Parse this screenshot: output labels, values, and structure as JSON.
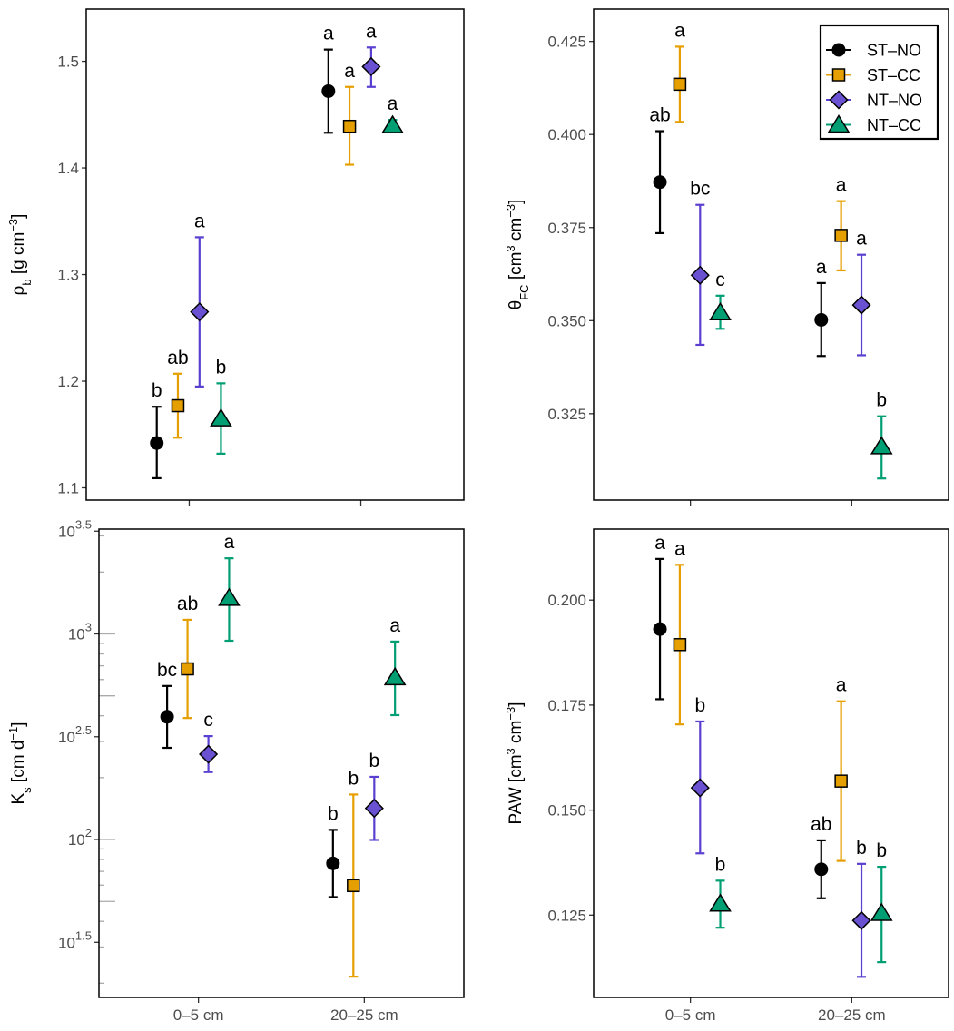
{
  "chart_data": [
    {
      "type": "scatter-errorbar",
      "ylabel": [
        {
          "t": "ρ"
        },
        {
          "t": "b",
          "sub": true
        },
        {
          "t": " [g cm"
        },
        {
          "t": "−3",
          "sup": true
        },
        {
          "t": "]"
        }
      ],
      "yscale": "linear",
      "ylim": [
        1.0885,
        1.549
      ],
      "yticks": [
        {
          "value": 1.1,
          "label": "1.1"
        },
        {
          "value": 1.2,
          "label": "1.2"
        },
        {
          "value": 1.3,
          "label": "1.3"
        },
        {
          "value": 1.4,
          "label": "1.4"
        },
        {
          "value": 1.5,
          "label": "1.5"
        }
      ],
      "categories": [
        "0–5 cm",
        "20–25 cm"
      ],
      "show_x_labels": false,
      "series": [
        {
          "name": "ST–NO",
          "color": "#000000",
          "marker": "circle",
          "mean": [
            1.142,
            1.472
          ],
          "lower": [
            1.109,
            1.433
          ],
          "upper": [
            1.176,
            1.511
          ],
          "letters": [
            "b",
            "a"
          ]
        },
        {
          "name": "ST–CC",
          "color": "#E69F00",
          "marker": "square",
          "mean": [
            1.177,
            1.439
          ],
          "lower": [
            1.147,
            1.403
          ],
          "upper": [
            1.207,
            1.476
          ],
          "letters": [
            "ab",
            "a"
          ]
        },
        {
          "name": "NT–NO",
          "color": "#6A51D1",
          "marker": "diamond",
          "mean": [
            1.265,
            1.495
          ],
          "lower": [
            1.195,
            1.476
          ],
          "upper": [
            1.335,
            1.513
          ],
          "letters": [
            "a",
            "a"
          ]
        },
        {
          "name": "NT–CC",
          "color": "#009E73",
          "marker": "triangle",
          "mean": [
            1.165,
            1.44
          ],
          "lower": [
            1.132,
            1.434
          ],
          "upper": [
            1.198,
            1.445
          ],
          "letters": [
            "b",
            "a"
          ]
        }
      ]
    },
    {
      "type": "scatter-errorbar",
      "ylabel": [
        {
          "t": "θ"
        },
        {
          "t": "FC",
          "sub": true
        },
        {
          "t": "  [cm"
        },
        {
          "t": "3",
          "sup": true
        },
        {
          "t": " cm"
        },
        {
          "t": "−3",
          "sup": true
        },
        {
          "t": "]"
        }
      ],
      "yscale": "linear",
      "ylim": [
        0.3018,
        0.4337
      ],
      "yticks": [
        {
          "value": 0.325,
          "label": "0.325"
        },
        {
          "value": 0.35,
          "label": "0.350"
        },
        {
          "value": 0.375,
          "label": "0.375"
        },
        {
          "value": 0.4,
          "label": "0.400"
        },
        {
          "value": 0.425,
          "label": "0.425"
        }
      ],
      "categories": [
        "0–5 cm",
        "20–25 cm"
      ],
      "show_x_labels": false,
      "legend": [
        "ST–NO",
        "ST–CC",
        "NT–NO",
        "NT–CC"
      ],
      "legend_position": "top-right",
      "series": [
        {
          "name": "ST–NO",
          "color": "#000000",
          "marker": "circle",
          "mean": [
            0.3872,
            0.3502
          ],
          "lower": [
            0.3735,
            0.3405
          ],
          "upper": [
            0.4009,
            0.3601
          ],
          "letters": [
            "ab",
            "a"
          ]
        },
        {
          "name": "ST–CC",
          "color": "#E69F00",
          "marker": "square",
          "mean": [
            0.4135,
            0.3729
          ],
          "lower": [
            0.4034,
            0.3635
          ],
          "upper": [
            0.4236,
            0.3821
          ],
          "letters": [
            "a",
            "a"
          ]
        },
        {
          "name": "NT–NO",
          "color": "#6A51D1",
          "marker": "diamond",
          "mean": [
            0.3622,
            0.3542
          ],
          "lower": [
            0.3435,
            0.3407
          ],
          "upper": [
            0.3811,
            0.3677
          ],
          "letters": [
            "bc",
            "a"
          ]
        },
        {
          "name": "NT–CC",
          "color": "#009E73",
          "marker": "triangle",
          "mean": [
            0.3522,
            0.3162
          ],
          "lower": [
            0.3478,
            0.3076
          ],
          "upper": [
            0.3567,
            0.3243
          ],
          "letters": [
            "c",
            "b"
          ]
        }
      ]
    },
    {
      "type": "scatter-errorbar",
      "ylabel": [
        {
          "t": "K"
        },
        {
          "t": "s",
          "sub": true
        },
        {
          "t": "  [cm d"
        },
        {
          "t": "−1",
          "sup": true
        },
        {
          "t": "]"
        }
      ],
      "yscale": "log10",
      "ylim": [
        1.232,
        3.51
      ],
      "yticks": [
        {
          "value": 1.5,
          "base": "10",
          "exp": "1.5"
        },
        {
          "value": 2,
          "base": "10",
          "exp": "2"
        },
        {
          "value": 2.5,
          "base": "10",
          "exp": "2.5"
        },
        {
          "value": 3,
          "base": "10",
          "exp": "3"
        },
        {
          "value": 3.5,
          "base": "10",
          "exp": "3.5"
        }
      ],
      "categories": [
        "0–5 cm",
        "20–25 cm"
      ],
      "show_x_labels": true,
      "series": [
        {
          "name": "ST–NO",
          "color": "#000000",
          "marker": "circle",
          "mean": [
            2.597,
            1.884
          ],
          "lower": [
            2.446,
            1.72
          ],
          "upper": [
            2.747,
            2.047
          ],
          "letters": [
            "bc",
            "b"
          ]
        },
        {
          "name": "ST–CC",
          "color": "#E69F00",
          "marker": "square",
          "mean": [
            2.83,
            1.776
          ],
          "lower": [
            2.591,
            1.333
          ],
          "upper": [
            3.069,
            2.219
          ],
          "letters": [
            "ab",
            "b"
          ]
        },
        {
          "name": "NT–NO",
          "color": "#6A51D1",
          "marker": "diamond",
          "mean": [
            2.415,
            2.152
          ],
          "lower": [
            2.328,
            1.998
          ],
          "upper": [
            2.503,
            2.305
          ],
          "letters": [
            "c",
            "b"
          ]
        },
        {
          "name": "NT–CC",
          "color": "#009E73",
          "marker": "triangle",
          "mean": [
            3.175,
            2.789
          ],
          "lower": [
            2.967,
            2.605
          ],
          "upper": [
            3.368,
            2.963
          ],
          "letters": [
            "a",
            "a"
          ]
        }
      ]
    },
    {
      "type": "scatter-errorbar",
      "ylabel": [
        {
          "t": "PAW [cm"
        },
        {
          "t": "3",
          "sup": true
        },
        {
          "t": " cm"
        },
        {
          "t": "−3",
          "sup": true
        },
        {
          "t": "]"
        }
      ],
      "yscale": "linear",
      "ylim": [
        0.1054,
        0.2169
      ],
      "yticks": [
        {
          "value": 0.125,
          "label": "0.125"
        },
        {
          "value": 0.15,
          "label": "0.150"
        },
        {
          "value": 0.175,
          "label": "0.175"
        },
        {
          "value": 0.2,
          "label": "0.200"
        }
      ],
      "categories": [
        "0–5 cm",
        "20–25 cm"
      ],
      "show_x_labels": true,
      "series": [
        {
          "name": "ST–NO",
          "color": "#000000",
          "marker": "circle",
          "mean": [
            0.1931,
            0.1359
          ],
          "lower": [
            0.1764,
            0.129
          ],
          "upper": [
            0.2098,
            0.1428
          ],
          "letters": [
            "a",
            "ab"
          ]
        },
        {
          "name": "ST–CC",
          "color": "#E69F00",
          "marker": "square",
          "mean": [
            0.1894,
            0.1569
          ],
          "lower": [
            0.1704,
            0.1379
          ],
          "upper": [
            0.2084,
            0.1759
          ],
          "letters": [
            "a",
            "a"
          ]
        },
        {
          "name": "NT–NO",
          "color": "#6A51D1",
          "marker": "diamond",
          "mean": [
            0.1553,
            0.1237
          ],
          "lower": [
            0.1397,
            0.1103
          ],
          "upper": [
            0.1711,
            0.1372
          ],
          "letters": [
            "b",
            "b"
          ]
        },
        {
          "name": "NT–CC",
          "color": "#009E73",
          "marker": "triangle",
          "mean": [
            0.1277,
            0.1255
          ],
          "lower": [
            0.122,
            0.1138
          ],
          "upper": [
            0.1332,
            0.1365
          ],
          "letters": [
            "b",
            "b"
          ]
        }
      ]
    }
  ]
}
